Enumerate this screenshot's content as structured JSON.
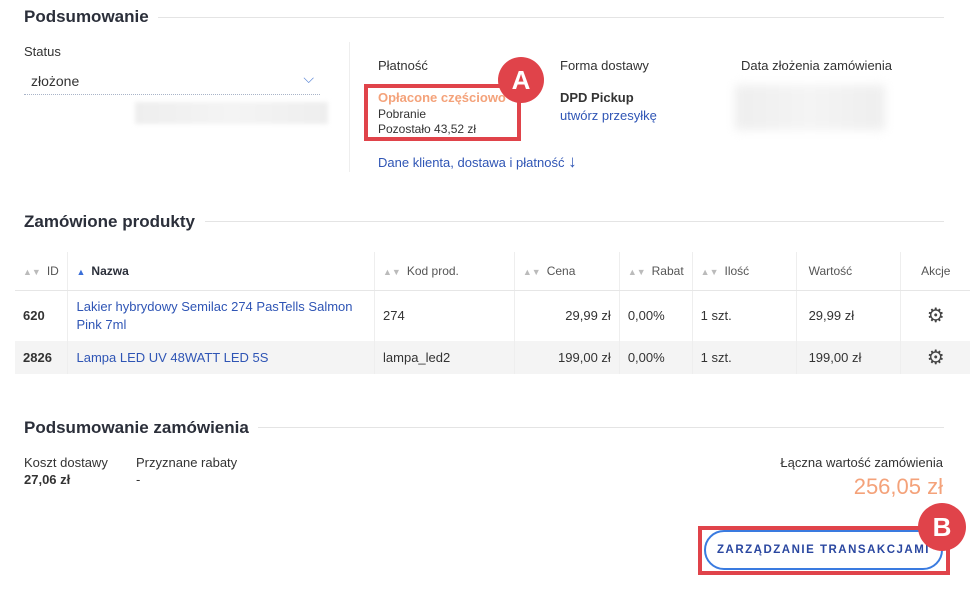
{
  "summary": {
    "title": "Podsumowanie",
    "status_label": "Status",
    "status_value": "złożone",
    "payment_label": "Płatność",
    "payment_status": "Opłacone częściowo",
    "payment_method": "Pobranie",
    "payment_remaining": "Pozostało 43,52 zł",
    "shipping_label": "Forma dostawy",
    "shipping_value": "DPD Pickup",
    "shipping_link": "utwórz przesyłkę",
    "date_label": "Data złożenia zamówienia",
    "client_link": "Dane klienta, dostawa i płatność"
  },
  "products": {
    "title": "Zamówione produkty",
    "columns": [
      "ID",
      "Nazwa",
      "Kod prod.",
      "Cena",
      "Rabat",
      "Ilość",
      "Wartość",
      "Akcje"
    ],
    "rows": [
      {
        "id": "620",
        "name": "Lakier hybrydowy Semilac 274 PasTells Salmon Pink 7ml",
        "code": "274",
        "price": "29,99 zł",
        "discount": "0,00%",
        "qty": "1 szt.",
        "value": "29,99 zł"
      },
      {
        "id": "2826",
        "name": "Lampa LED UV 48WATT LED 5S",
        "code": "lampa_led2",
        "price": "199,00 zł",
        "discount": "0,00%",
        "qty": "1 szt.",
        "value": "199,00 zł"
      }
    ]
  },
  "order_summary": {
    "title": "Podsumowanie zamówienia",
    "shipping_cost_label": "Koszt dostawy",
    "shipping_cost": "27,06 zł",
    "discounts_label": "Przyznane rabaty",
    "discounts": "-",
    "total_label": "Łączna wartość zamówienia",
    "total": "256,05 zł",
    "transactions_button": "ZARZĄDZANIE TRANSAKCJAMI"
  },
  "annotations": {
    "a": "A",
    "b": "B"
  },
  "colors": {
    "accent_orange": "#f4a27a",
    "link_blue": "#2f55b5",
    "annotation_red": "#e0434a"
  }
}
